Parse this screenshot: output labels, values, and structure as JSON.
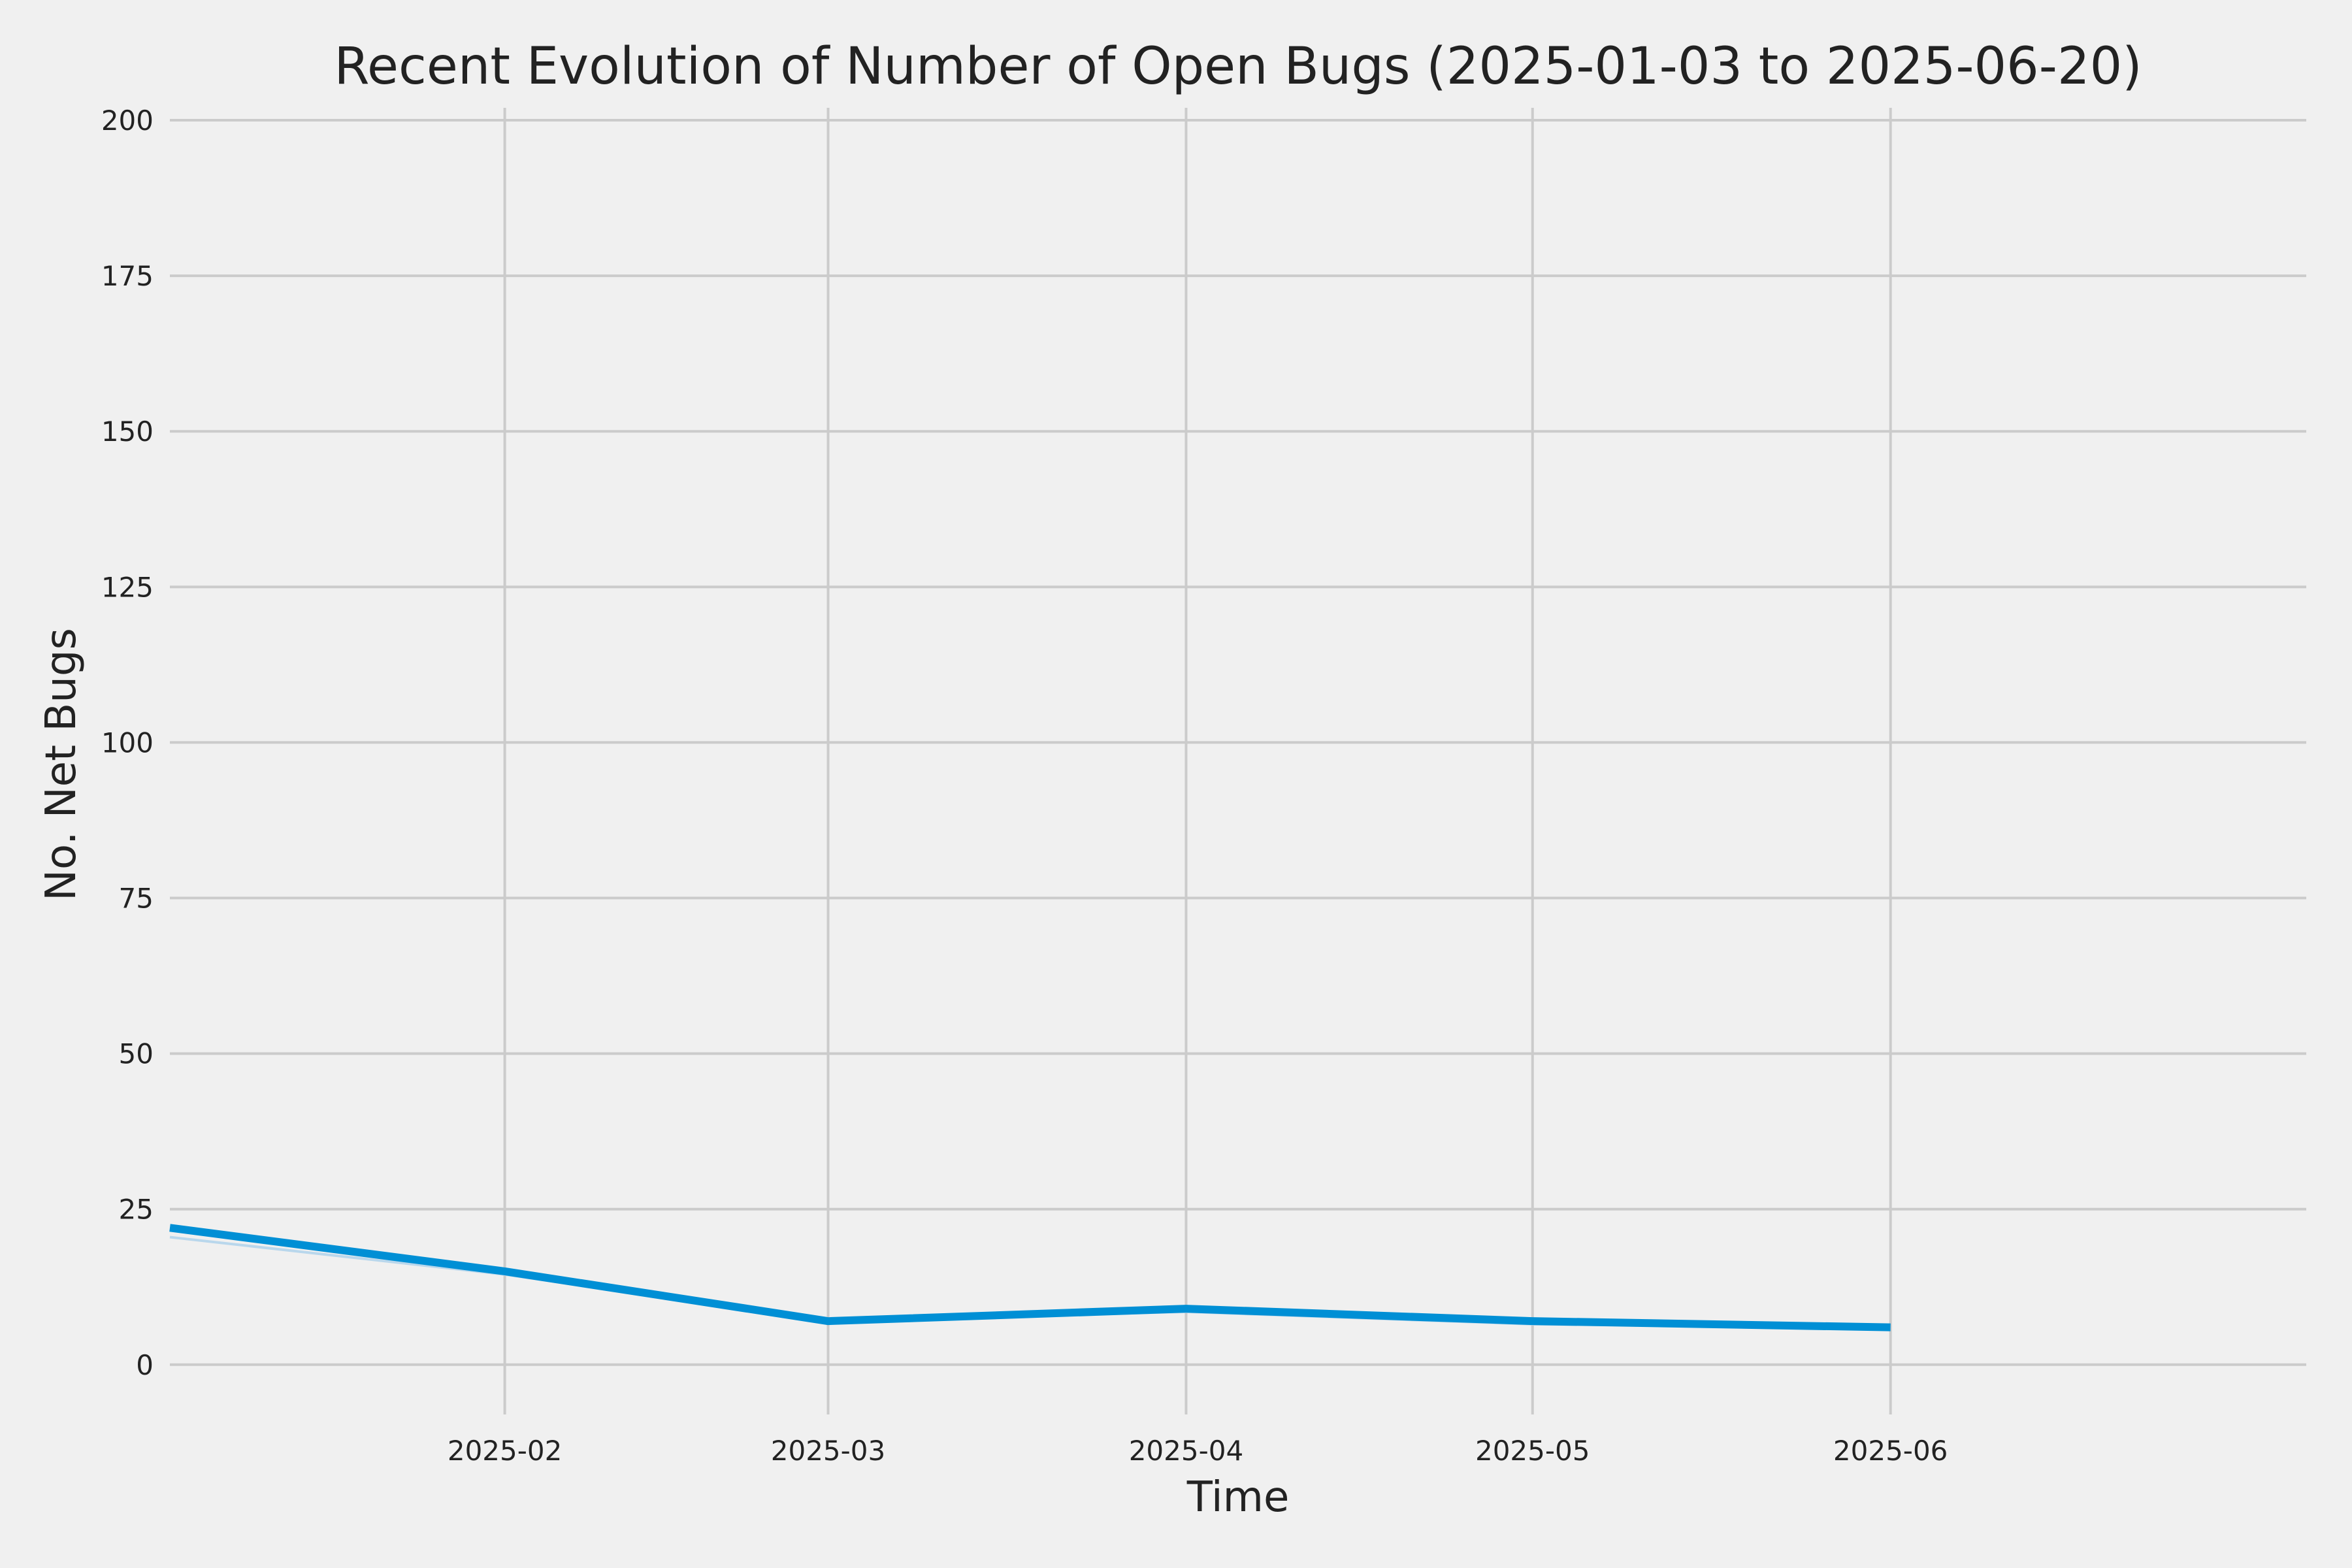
{
  "chart_data": {
    "type": "line",
    "title": "Recent Evolution of Number of Open Bugs (2025-01-03 to 2025-06-20)",
    "xlabel": "Time",
    "ylabel": "No. Net Bugs",
    "xlim": [
      "2025-01-03",
      "2025-06-20"
    ],
    "ylim": [
      -8,
      202
    ],
    "x_ticks": [
      "2025-02",
      "2025-03",
      "2025-04",
      "2025-05",
      "2025-06"
    ],
    "y_ticks": [
      0,
      25,
      50,
      75,
      100,
      125,
      150,
      175,
      200
    ],
    "grid": true,
    "colors": {
      "background": "#f0f0f0",
      "line": "#008fd5",
      "shadow": "#b9d7ec",
      "grid": "#cbcbcb",
      "text": "#222222"
    },
    "series": [
      {
        "x": [
          "2025-01-03",
          "2025-02-01",
          "2025-03-01",
          "2025-04-01",
          "2025-05-01",
          "2025-06-01"
        ],
        "values": [
          22,
          15,
          7,
          9,
          7,
          6
        ]
      },
      {
        "style": "shadow",
        "x": [
          "2025-01-03",
          "2025-02-01",
          "2025-03-01",
          "2025-04-01",
          "2025-05-01",
          "2025-06-01"
        ],
        "values": [
          20.5,
          14.5,
          7,
          8.5,
          6.5,
          6
        ]
      }
    ]
  }
}
